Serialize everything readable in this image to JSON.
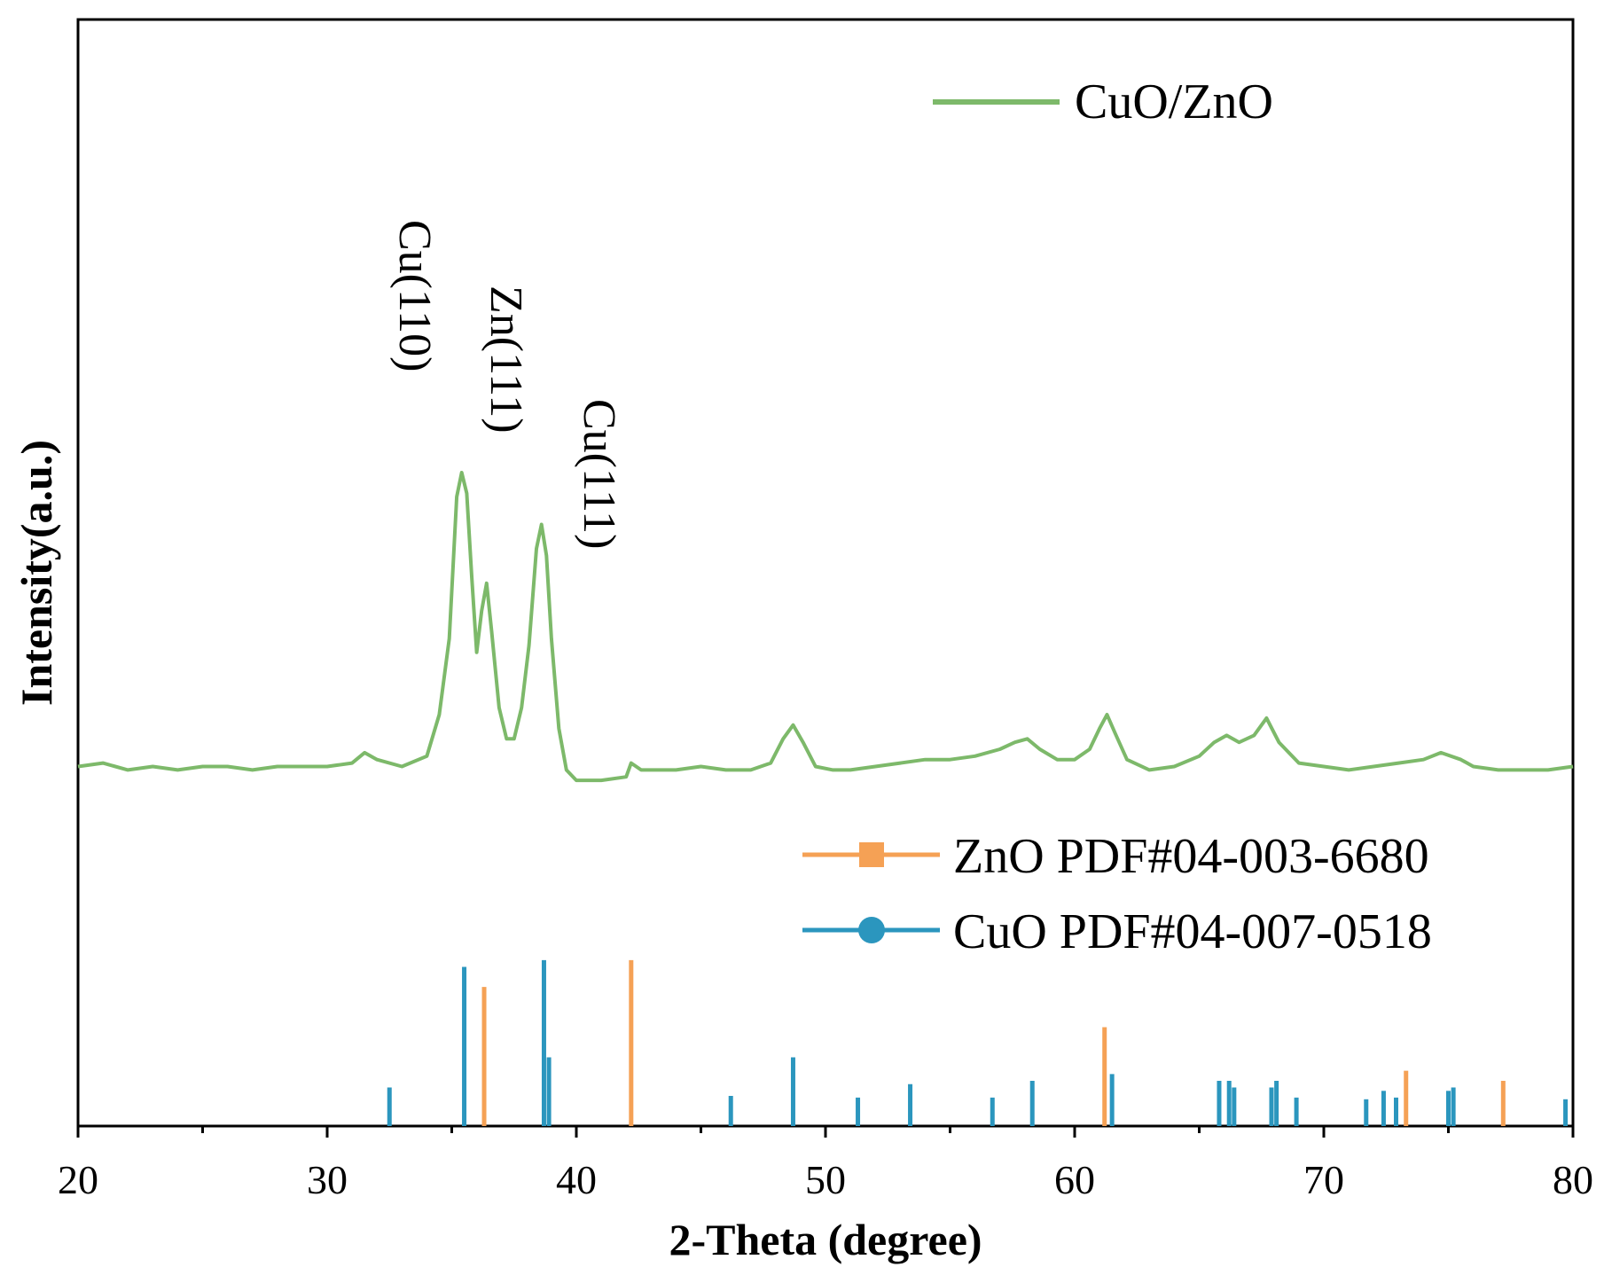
{
  "chart_data": {
    "type": "line",
    "title": "",
    "xlabel": "2-Theta (degree)",
    "ylabel": "Intensity(a.u.)",
    "xlim": [
      20,
      80
    ],
    "xticks": [
      20,
      30,
      40,
      50,
      60,
      70,
      80
    ],
    "yticks_shown": false,
    "grid": false,
    "colors": {
      "cuo_zno": "#7db96a",
      "zno_ref": "#f5a155",
      "cuo_ref": "#2b96be"
    },
    "legend_top": {
      "placement": "top-right",
      "entries": [
        "CuO/ZnO"
      ]
    },
    "legend_bottom": {
      "placement": "lower-right",
      "entries": [
        "ZnO PDF#04-003-6680",
        "CuO PDF#04-007-0518"
      ]
    },
    "annotations": [
      {
        "text": "Cu(110)",
        "x": 35.5
      },
      {
        "text": "Zn(111)",
        "x": 36.4
      },
      {
        "text": "Cu(111)",
        "x": 38.7
      }
    ],
    "series": [
      {
        "name": "CuO/ZnO",
        "color": "#7db96a",
        "x": [
          20,
          21,
          22,
          23,
          24,
          25,
          26,
          27,
          28,
          29,
          30,
          31,
          31.5,
          32,
          33,
          34,
          34.5,
          34.9,
          35.2,
          35.4,
          35.6,
          35.8,
          36.0,
          36.2,
          36.4,
          36.6,
          36.9,
          37.2,
          37.5,
          37.8,
          38.1,
          38.4,
          38.6,
          38.8,
          39.0,
          39.3,
          39.6,
          40.0,
          41,
          42,
          42.2,
          42.6,
          43,
          44,
          45,
          46,
          47,
          47.8,
          48.3,
          48.7,
          49.1,
          49.6,
          50.3,
          51,
          52,
          53,
          54,
          55,
          56,
          57,
          57.6,
          58.1,
          58.6,
          59.3,
          60,
          60.6,
          61.0,
          61.3,
          61.6,
          62.1,
          63,
          64,
          65,
          65.6,
          66.1,
          66.6,
          67.2,
          67.7,
          68.2,
          69,
          70,
          71,
          72,
          73,
          74,
          74.7,
          75.5,
          76,
          77,
          78,
          79,
          80
        ],
        "y": [
          0.05,
          0.06,
          0.04,
          0.05,
          0.04,
          0.05,
          0.05,
          0.04,
          0.05,
          0.05,
          0.05,
          0.06,
          0.09,
          0.07,
          0.05,
          0.08,
          0.2,
          0.42,
          0.83,
          0.9,
          0.84,
          0.6,
          0.38,
          0.5,
          0.58,
          0.44,
          0.22,
          0.13,
          0.13,
          0.22,
          0.4,
          0.68,
          0.75,
          0.66,
          0.42,
          0.16,
          0.04,
          0.01,
          0.01,
          0.02,
          0.06,
          0.04,
          0.04,
          0.04,
          0.05,
          0.04,
          0.04,
          0.06,
          0.13,
          0.17,
          0.12,
          0.05,
          0.04,
          0.04,
          0.05,
          0.06,
          0.07,
          0.07,
          0.08,
          0.1,
          0.12,
          0.13,
          0.1,
          0.07,
          0.07,
          0.1,
          0.16,
          0.2,
          0.15,
          0.07,
          0.04,
          0.05,
          0.08,
          0.12,
          0.14,
          0.12,
          0.14,
          0.19,
          0.12,
          0.06,
          0.05,
          0.04,
          0.05,
          0.06,
          0.07,
          0.09,
          0.07,
          0.05,
          0.04,
          0.04,
          0.04,
          0.05
        ]
      }
    ],
    "reference_patterns": [
      {
        "name": "ZnO PDF#04-003-6680",
        "color": "#f5a155",
        "positions": [
          36.3,
          42.2,
          61.2,
          73.3,
          77.2
        ],
        "intensities": [
          0.83,
          0.99,
          0.59,
          0.33,
          0.27
        ]
      },
      {
        "name": "CuO PDF#04-007-0518",
        "color": "#2b96be",
        "positions": [
          32.5,
          35.5,
          38.7,
          38.9,
          46.2,
          48.7,
          51.3,
          53.4,
          56.7,
          58.3,
          61.5,
          65.8,
          66.2,
          66.4,
          67.9,
          68.1,
          68.9,
          71.7,
          72.4,
          72.9,
          75.0,
          75.2,
          79.7
        ],
        "intensities": [
          0.23,
          0.95,
          0.99,
          0.41,
          0.18,
          0.41,
          0.17,
          0.25,
          0.17,
          0.27,
          0.31,
          0.27,
          0.27,
          0.23,
          0.23,
          0.27,
          0.17,
          0.16,
          0.21,
          0.17,
          0.21,
          0.23,
          0.16
        ]
      }
    ]
  }
}
